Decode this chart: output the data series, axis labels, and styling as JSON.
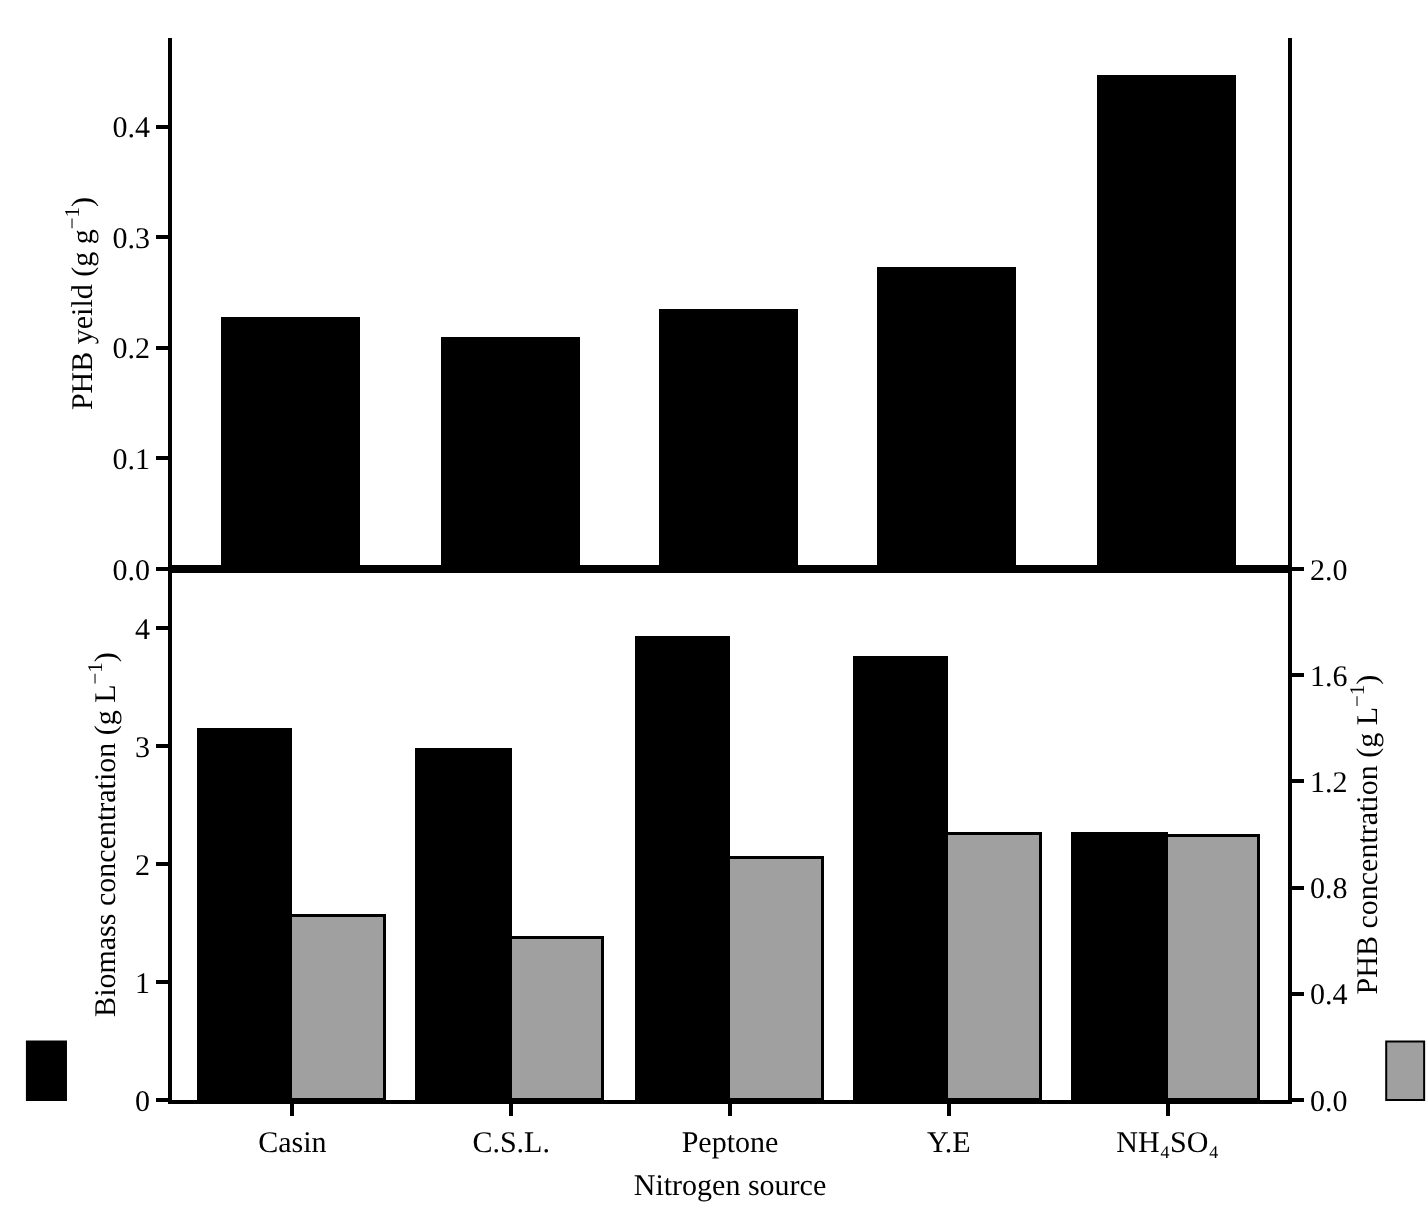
{
  "chart_data": [
    {
      "type": "bar",
      "categories": [
        null,
        null,
        null,
        null,
        null
      ],
      "values": [
        0.225,
        0.207,
        0.232,
        0.27,
        0.443
      ],
      "color": "#000000",
      "ylabel": "PHB yeild (g g$^{−1}$)",
      "ylim": [
        0,
        0.48
      ],
      "yticks": [
        {
          "value": 0,
          "label": "0.0"
        },
        {
          "value": 0.1,
          "label": "0.1"
        },
        {
          "value": 0.2,
          "label": "0.2"
        },
        {
          "value": 0.3,
          "label": "0.3"
        },
        {
          "value": 0.4,
          "label": "0.4"
        }
      ],
      "tick_labels": "y"
    },
    {
      "type": "bar",
      "categories": [
        "Casin",
        "C.S.L.",
        "Peptone",
        "Y.E",
        "NH₄SO₄"
      ],
      "xlabel": "Nitrogen source",
      "ylabel": "Biomass concentration (g L$^{−1}$)",
      "y2label": "PHB concentration (g L$^{−1}$)",
      "ylim": [
        0,
        4.5
      ],
      "yticks": [
        0,
        1,
        2,
        3,
        4
      ],
      "y2lim": [
        0,
        2.0
      ],
      "y2ticks": [
        {
          "value": 0,
          "label": "0.0"
        },
        {
          "value": 0.4,
          "label": "0.4"
        },
        {
          "value": 0.8,
          "label": "0.8"
        },
        {
          "value": 1.2,
          "label": "1.2"
        },
        {
          "value": 1.6,
          "label": "1.6"
        },
        {
          "value": 2.0,
          "label": "2.0"
        }
      ],
      "series": [
        {
          "color": "#000000",
          "values": [
            3.12,
            2.96,
            3.91,
            3.74,
            2.24
          ]
        },
        {
          "color": "#a0a0a0",
          "axis": "y2",
          "values": [
            0.69,
            0.61,
            0.91,
            1.0,
            0.99
          ]
        }
      ]
    }
  ]
}
